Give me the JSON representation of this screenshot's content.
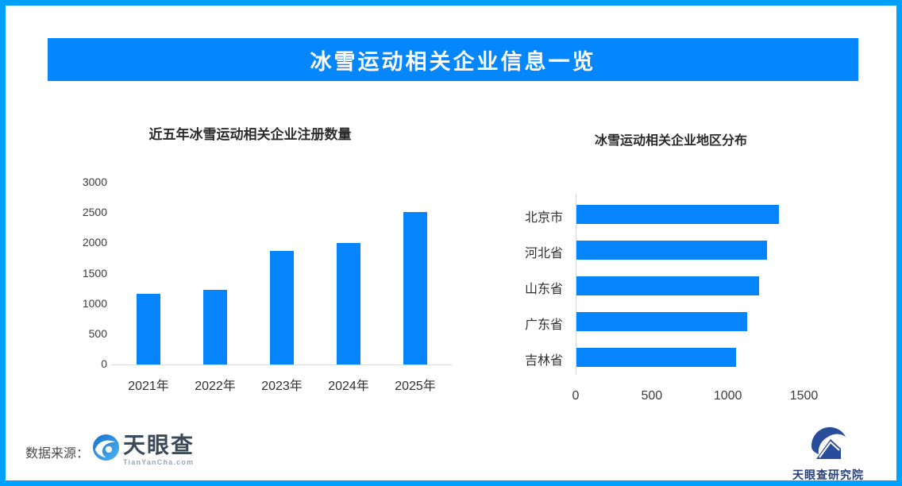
{
  "colors": {
    "border": "#00a0ff",
    "banner": "#0486fe",
    "bar": "#0584fb",
    "axis_line": "#d9d9d9"
  },
  "header": {
    "title": "冰雪运动相关企业信息一览"
  },
  "chart_data": [
    {
      "type": "bar",
      "title": "近五年冰雪运动相关企业注册数量",
      "categories": [
        "2021年",
        "2022年",
        "2023年",
        "2024年",
        "2025年"
      ],
      "values": [
        1170,
        1225,
        1870,
        2010,
        2510
      ],
      "xlabel": "",
      "ylabel": "",
      "ylim": [
        0,
        3000
      ],
      "yticks": [
        0,
        500,
        1000,
        1500,
        2000,
        2500,
        3000
      ],
      "grid": false,
      "legend": "none",
      "bar_color": "#0584fb"
    },
    {
      "type": "bar-horizontal",
      "title": "冰雪运动相关企业地区分布",
      "categories": [
        "北京市",
        "河北省",
        "山东省",
        "广东省",
        "吉林省"
      ],
      "values": [
        1330,
        1250,
        1200,
        1120,
        1050
      ],
      "xlabel": "",
      "ylabel": "",
      "xlim": [
        0,
        1800
      ],
      "xticks": [
        0,
        500,
        1000,
        1500
      ],
      "grid": false,
      "legend": "none",
      "bar_color": "#0584fb"
    }
  ],
  "footer": {
    "source_label": "数据来源：",
    "tianyancha": {
      "brand": "天眼查",
      "domain": "TianYanCha.com"
    },
    "institute": {
      "name": "天眼查研究院"
    }
  }
}
